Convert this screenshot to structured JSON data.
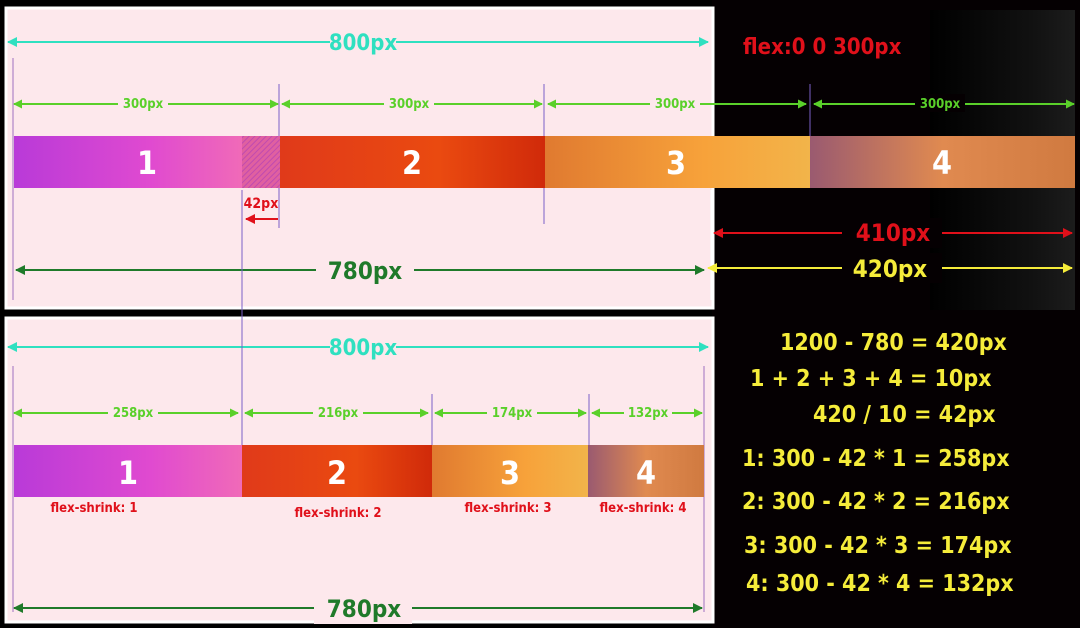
{
  "top": {
    "container_label": "800px",
    "flex_label": "flex:0 0 300px",
    "item_widths": [
      "300px",
      "300px",
      "300px",
      "300px"
    ],
    "items": [
      "1",
      "2",
      "3",
      "4"
    ],
    "shrink_label": "42px",
    "content_label": "780px",
    "overflow_red_label": "410px",
    "overflow_yellow_label": "420px"
  },
  "bottom": {
    "container_label": "800px",
    "item_widths": [
      "258px",
      "216px",
      "174px",
      "132px"
    ],
    "items": [
      "1",
      "2",
      "3",
      "4"
    ],
    "shrink_labels": [
      "flex-shrink: 1",
      "flex-shrink: 2",
      "flex-shrink: 3",
      "flex-shrink: 4"
    ],
    "content_label": "780px"
  },
  "formulas": [
    "1200 - 780 = 420px",
    "1 + 2 + 3 + 4 = 10px",
    "420 / 10 = 42px",
    "1:  300 - 42  * 1 = 258px",
    "2:  300 - 42  * 2 = 216px",
    "3:  300 - 42  * 3 = 174px",
    "4:  300 - 42  * 4 = 132px"
  ],
  "colors": {
    "panel": "#fde8ec",
    "teal": "#2fe0c0",
    "green": "#5ad02a",
    "darkgreen": "#1f7a2a",
    "red": "#e0101a",
    "yellow": "#f5ec3a",
    "line": "#7a60c8"
  }
}
